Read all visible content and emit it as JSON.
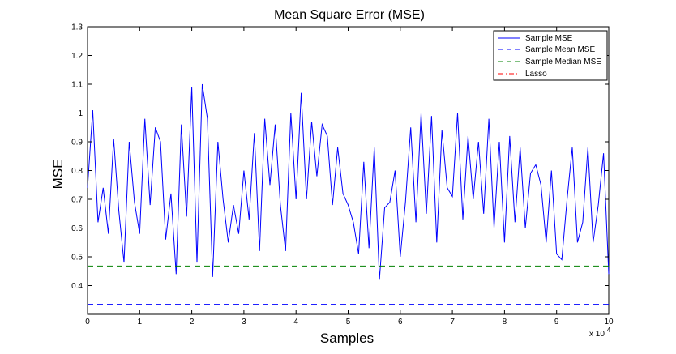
{
  "chart_data": {
    "type": "line",
    "title": "Mean Square Error (MSE)",
    "xlabel": "Samples",
    "ylabel": "MSE",
    "x_multiplier_base": "x 10",
    "x_multiplier_exp": "4",
    "xlim": [
      0,
      10
    ],
    "ylim": [
      0.3,
      1.3
    ],
    "xticks": [
      "0",
      "1",
      "2",
      "3",
      "4",
      "5",
      "6",
      "7",
      "8",
      "9",
      "10"
    ],
    "yticks": [
      "0.4",
      "0.5",
      "0.6",
      "0.7",
      "0.8",
      "0.9",
      "1",
      "1.1",
      "1.2",
      "1.3"
    ],
    "grid": false,
    "legend_position": "top-right",
    "series": [
      {
        "name": "Sample MSE",
        "style": "solid",
        "color": "#0000ff",
        "x": [
          0.0,
          0.1,
          0.2,
          0.3,
          0.4,
          0.5,
          0.6,
          0.7,
          0.8,
          0.9,
          1.0,
          1.1,
          1.2,
          1.3,
          1.4,
          1.5,
          1.6,
          1.7,
          1.8,
          1.9,
          2.0,
          2.1,
          2.2,
          2.3,
          2.4,
          2.5,
          2.6,
          2.7,
          2.8,
          2.9,
          3.0,
          3.1,
          3.2,
          3.3,
          3.4,
          3.5,
          3.6,
          3.7,
          3.8,
          3.9,
          4.0,
          4.1,
          4.2,
          4.3,
          4.4,
          4.5,
          4.6,
          4.7,
          4.8,
          4.9,
          5.0,
          5.1,
          5.2,
          5.3,
          5.4,
          5.5,
          5.6,
          5.7,
          5.8,
          5.9,
          6.0,
          6.1,
          6.2,
          6.3,
          6.4,
          6.5,
          6.6,
          6.7,
          6.8,
          6.9,
          7.0,
          7.1,
          7.2,
          7.3,
          7.4,
          7.5,
          7.6,
          7.7,
          7.8,
          7.9,
          8.0,
          8.1,
          8.2,
          8.3,
          8.4,
          8.5,
          8.6,
          8.7,
          8.8,
          8.9,
          9.0,
          9.1,
          9.2,
          9.3,
          9.4,
          9.5,
          9.6,
          9.7,
          9.8,
          9.9,
          10.0
        ],
        "values": [
          0.74,
          1.01,
          0.62,
          0.74,
          0.58,
          0.91,
          0.66,
          0.48,
          0.9,
          0.69,
          0.58,
          0.98,
          0.68,
          0.95,
          0.9,
          0.56,
          0.72,
          0.44,
          0.96,
          0.64,
          1.09,
          0.48,
          1.1,
          0.98,
          0.43,
          0.9,
          0.7,
          0.55,
          0.68,
          0.58,
          0.8,
          0.63,
          0.93,
          0.52,
          0.98,
          0.75,
          0.96,
          0.68,
          0.52,
          1.0,
          0.7,
          1.07,
          0.7,
          0.97,
          0.78,
          0.96,
          0.92,
          0.68,
          0.88,
          0.72,
          0.68,
          0.62,
          0.51,
          0.83,
          0.53,
          0.88,
          0.42,
          0.67,
          0.69,
          0.8,
          0.5,
          0.69,
          0.95,
          0.62,
          1.0,
          0.65,
          0.99,
          0.55,
          0.94,
          0.74,
          0.71,
          1.0,
          0.63,
          0.92,
          0.7,
          0.9,
          0.65,
          0.98,
          0.6,
          0.9,
          0.55,
          0.92,
          0.62,
          0.88,
          0.6,
          0.79,
          0.82,
          0.75,
          0.55,
          0.8,
          0.51,
          0.49,
          0.7,
          0.88,
          0.55,
          0.62,
          0.88,
          0.55,
          0.68,
          0.86,
          0.44
        ]
      },
      {
        "name": "Sample Mean MSE",
        "style": "dashed",
        "color": "#0000ff",
        "x": [
          0,
          10
        ],
        "values": [
          0.335,
          0.335
        ]
      },
      {
        "name": "Sample Median MSE",
        "style": "dashed",
        "color": "#008000",
        "x": [
          0,
          10
        ],
        "values": [
          0.468,
          0.468
        ]
      },
      {
        "name": "Lasso",
        "style": "dashdot",
        "color": "#ff0000",
        "x": [
          0,
          10
        ],
        "values": [
          1.0,
          1.0
        ]
      }
    ]
  }
}
